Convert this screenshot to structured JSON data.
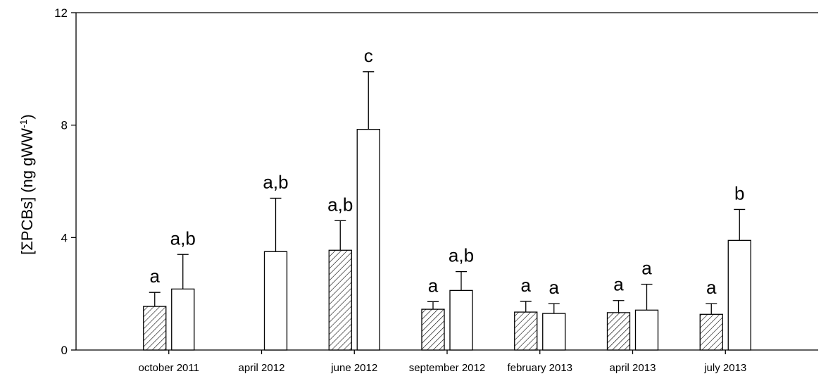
{
  "chart_data": {
    "type": "bar",
    "categories": [
      "october 2011",
      "april 2012",
      "june 2012",
      "september 2012",
      "february 2013",
      "april 2013",
      "july 2013"
    ],
    "series": [
      {
        "pattern": "hatched",
        "values": [
          1.55,
          null,
          3.55,
          1.45,
          1.35,
          1.33,
          1.27
        ],
        "errors": [
          0.5,
          null,
          1.05,
          0.27,
          0.38,
          0.43,
          0.38
        ],
        "labels": [
          "a",
          "",
          "a,b",
          "a",
          "a",
          "a",
          "a"
        ]
      },
      {
        "pattern": "open",
        "values": [
          2.17,
          3.5,
          7.85,
          2.12,
          1.3,
          1.42,
          3.9
        ],
        "errors": [
          1.23,
          1.9,
          2.05,
          0.67,
          0.35,
          0.92,
          1.1
        ],
        "labels": [
          "a,b",
          "a,b",
          "c",
          "a,b",
          "a",
          "a",
          "b"
        ]
      }
    ],
    "ylabel_parts": {
      "main": "[ΣPCBs] (ng gWW",
      "sup": "-1",
      "close": ")"
    },
    "ylim": [
      0,
      12
    ],
    "yticks": [
      "0",
      "4",
      "8",
      "12"
    ],
    "grid": false,
    "legend": "none"
  }
}
